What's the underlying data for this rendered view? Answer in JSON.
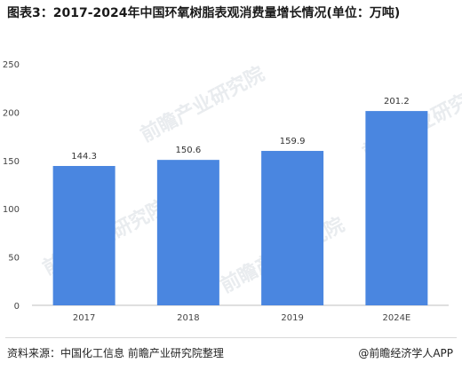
{
  "title": "图表3：2017-2024年中国环氧树脂表观消费量增长情况(单位：万吨)",
  "watermark_text": "前瞻产业研究院",
  "chart_data": {
    "type": "bar",
    "categories": [
      "2017",
      "2018",
      "2019",
      "2024E"
    ],
    "values": [
      144.3,
      150.6,
      159.9,
      201.2
    ],
    "value_labels": [
      "144.3",
      "150.6",
      "159.9",
      "201.2"
    ],
    "yticks": [
      0,
      50,
      100,
      150,
      200,
      250
    ],
    "ylim": [
      0,
      250
    ],
    "bar_color": "#4a86e0",
    "grid": false
  },
  "footer": {
    "source": "资料来源：中国化工信息 前瞻产业研究院整理",
    "brand": "@前瞻经济学人APP"
  }
}
